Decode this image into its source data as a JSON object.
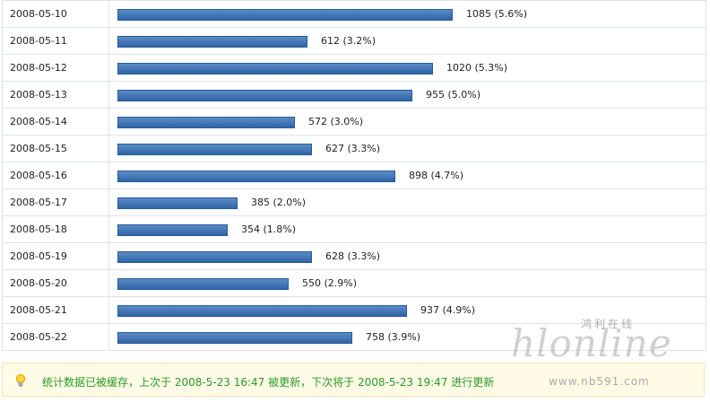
{
  "chart_data": {
    "type": "bar",
    "orientation": "horizontal",
    "categories": [
      "2008-05-10",
      "2008-05-11",
      "2008-05-12",
      "2008-05-13",
      "2008-05-14",
      "2008-05-15",
      "2008-05-16",
      "2008-05-17",
      "2008-05-18",
      "2008-05-19",
      "2008-05-20",
      "2008-05-21",
      "2008-05-22"
    ],
    "values": [
      1085,
      612,
      1020,
      955,
      572,
      627,
      898,
      385,
      354,
      628,
      550,
      937,
      758
    ],
    "labels": [
      "1085 (5.6%)",
      "612 (3.2%)",
      "1020 (5.3%)",
      "955 (5.0%)",
      "572 (3.0%)",
      "627 (3.3%)",
      "898 (4.7%)",
      "385 (2.0%)",
      "354 (1.8%)",
      "628 (3.3%)",
      "550 (2.9%)",
      "937 (4.9%)",
      "758 (3.9%)"
    ],
    "bar_color": "#2f64a6"
  },
  "notice": {
    "icon": "lightbulb-icon",
    "text": "统计数据已被缓存，上次于  2008-5-23 16:47 被更新，下次将于  2008-5-23 19:47 进行更新",
    "color": "#2b9a2b",
    "background": "#fffbe6"
  },
  "watermark": {
    "script": "hlonline",
    "cn": "鸿利在线",
    "url": "www.nb591.com"
  }
}
